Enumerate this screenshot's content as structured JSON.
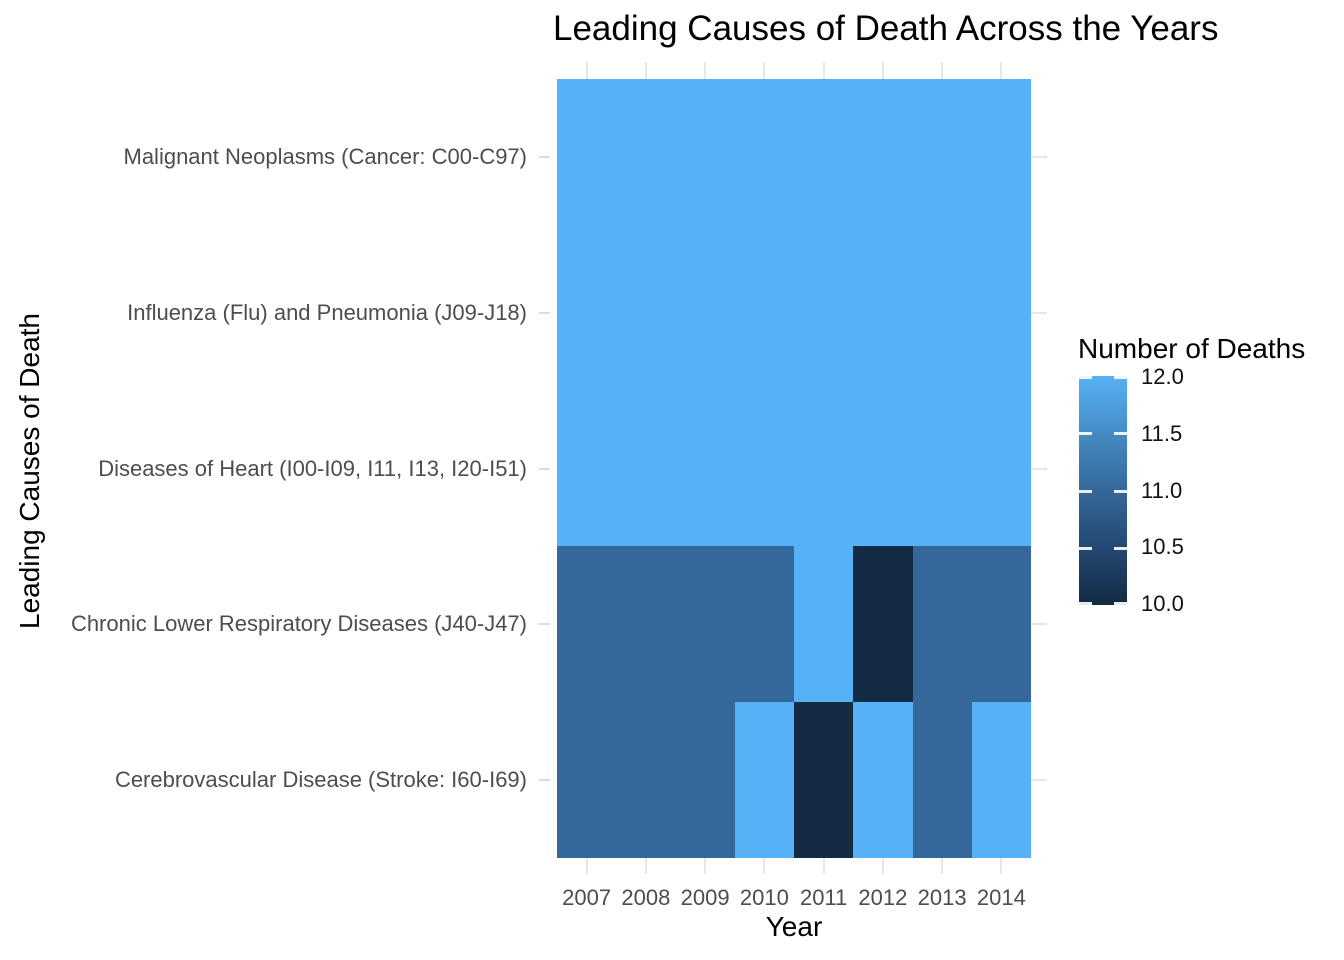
{
  "title": "Leading Causes of Death Across the Years",
  "chart_data": {
    "type": "heatmap",
    "title": "Leading Causes of Death Across the Years",
    "xlabel": "Year",
    "ylabel": "Leading Causes of Death",
    "x_categories": [
      "2007",
      "2008",
      "2009",
      "2010",
      "2011",
      "2012",
      "2013",
      "2014"
    ],
    "y_categories": [
      "Malignant Neoplasms (Cancer: C00-C97)",
      "Influenza (Flu) and Pneumonia (J09-J18)",
      "Diseases of Heart (I00-I09, I11, I13, I20-I51)",
      "Chronic Lower Respiratory Diseases (J40-J47)",
      "Cerebrovascular Disease (Stroke: I60-I69)"
    ],
    "series": [
      {
        "name": "Malignant Neoplasms (Cancer: C00-C97)",
        "values": [
          12,
          12,
          12,
          12,
          12,
          12,
          12,
          12
        ]
      },
      {
        "name": "Influenza (Flu) and Pneumonia (J09-J18)",
        "values": [
          12,
          12,
          12,
          12,
          12,
          12,
          12,
          12
        ]
      },
      {
        "name": "Diseases of Heart (I00-I09, I11, I13, I20-I51)",
        "values": [
          12,
          12,
          12,
          12,
          12,
          12,
          12,
          12
        ]
      },
      {
        "name": "Chronic Lower Respiratory Diseases (J40-J47)",
        "values": [
          11,
          11,
          11,
          11,
          12,
          10,
          11,
          11
        ]
      },
      {
        "name": "Cerebrovascular Disease (Stroke: I60-I69)",
        "values": [
          11,
          11,
          11,
          12,
          10,
          12,
          11,
          12
        ]
      }
    ],
    "value_range": [
      10,
      12
    ],
    "legend": {
      "title": "Number of Deaths",
      "tick_labels": [
        "12.0",
        "11.5",
        "11.0",
        "10.5",
        "10.0"
      ],
      "position": "right",
      "orientation": "vertical"
    },
    "colors": {
      "high": "#56B1F7",
      "mid": "#35689A",
      "low": "#132B43",
      "value_map": {
        "12": "#56B1F7",
        "11": "#35689A",
        "10": "#132B43"
      },
      "gridline": "#e7e7e7",
      "axis_text": "#4d4d4d",
      "background": "#ffffff"
    },
    "grid": true
  }
}
